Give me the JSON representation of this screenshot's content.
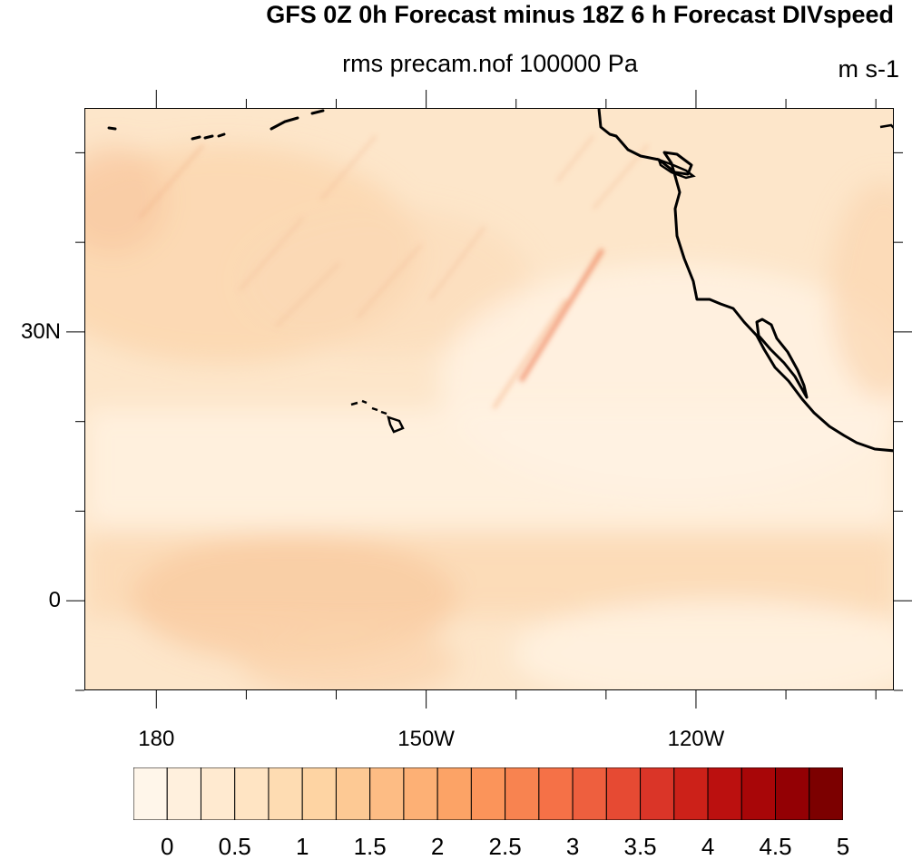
{
  "map": {
    "title": "GFS 0Z 0h Forecast minus 18Z 6 h Forecast DIVspeed",
    "subtitle": "rms precam.nof 100000 Pa",
    "units": "m s-1",
    "projection": "cylindrical-equidistant",
    "extent": {
      "lon_min": 172,
      "lon_max": 262,
      "lat_min": -10,
      "lat_max": 55
    },
    "lat_ticks": [
      {
        "lat": 30,
        "label": "30N"
      },
      {
        "lat": 0,
        "label": "0"
      }
    ],
    "lon_ticks": [
      {
        "lon": 180,
        "label": "180"
      },
      {
        "lon": 210,
        "label": "150W"
      },
      {
        "lon": 240,
        "label": "120W"
      }
    ],
    "minor_lat": [
      50,
      40,
      30,
      20,
      10,
      0,
      -10
    ],
    "minor_lon": [
      180,
      190,
      200,
      210,
      220,
      230,
      240,
      250,
      260
    ],
    "features": [
      "coastline-north-america",
      "hawaii-islands",
      "aleutian-islands"
    ]
  },
  "colorbar": {
    "colors": [
      "#fff6ea",
      "#fff0dd",
      "#ffead0",
      "#ffe4c3",
      "#fedcb2",
      "#fed4a3",
      "#fdc994",
      "#fdbc84",
      "#fdb075",
      "#fca366",
      "#fb945a",
      "#f88350",
      "#f57147",
      "#ee5f3e",
      "#e64a33",
      "#da3528",
      "#cc2119",
      "#bb100f",
      "#a80608",
      "#930004",
      "#7c0000"
    ],
    "labels": [
      "0",
      "0.5",
      "1",
      "1.5",
      "2",
      "2.5",
      "3",
      "3.5",
      "4",
      "4.5",
      "5"
    ]
  }
}
